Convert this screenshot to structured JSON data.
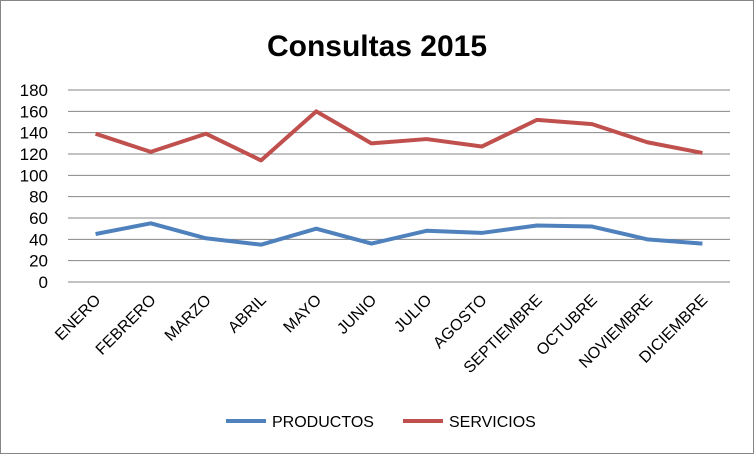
{
  "chart_data": {
    "type": "line",
    "title": "Consultas 2015",
    "xlabel": "",
    "ylabel": "",
    "ylim": [
      0,
      180
    ],
    "yticks": [
      0,
      20,
      40,
      60,
      80,
      100,
      120,
      140,
      160,
      180
    ],
    "grid": true,
    "legend": "bottom",
    "categories": [
      "ENERO",
      "FEBRERO",
      "MARZO",
      "ABRIL",
      "MAYO",
      "JUNIO",
      "JULIO",
      "AGOSTO",
      "SEPTIEMBRE",
      "OCTUBRE",
      "NOVIEMBRE",
      "DICIEMBRE"
    ],
    "series": [
      {
        "name": "PRODUCTOS",
        "color": "#4F81BD",
        "values": [
          45,
          55,
          41,
          35,
          50,
          36,
          48,
          46,
          53,
          52,
          40,
          36
        ]
      },
      {
        "name": "SERVICIOS",
        "color": "#C0504D",
        "values": [
          139,
          122,
          139,
          114,
          160,
          130,
          134,
          127,
          152,
          148,
          131,
          121
        ]
      }
    ]
  }
}
